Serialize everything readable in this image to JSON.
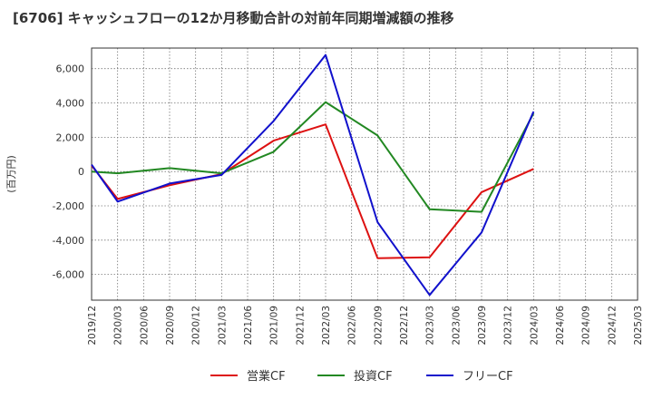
{
  "chart_data": {
    "type": "line",
    "title": "[6706]  キャッシュフローの12か月移動合計の対前年同期増減額の推移",
    "ylabel": "(百万円)",
    "xlabel": "",
    "ylim": [
      -7500,
      7200
    ],
    "y_ticks": [
      -6000,
      -4000,
      -2000,
      0,
      2000,
      4000,
      6000
    ],
    "y_tick_labels": [
      "-6,000",
      "-4,000",
      "-2,000",
      "0",
      "2,000",
      "4,000",
      "6,000"
    ],
    "categories": [
      "2019/12",
      "2020/03",
      "2020/06",
      "2020/09",
      "2020/12",
      "2021/03",
      "2021/06",
      "2021/09",
      "2021/12",
      "2022/03",
      "2022/06",
      "2022/09",
      "2022/12",
      "2023/03",
      "2023/06",
      "2023/09",
      "2023/12",
      "2024/03",
      "2024/06",
      "2024/09",
      "2024/12",
      "2025/03"
    ],
    "grid": true,
    "legend_position": "bottom",
    "series": [
      {
        "name": "営業CF",
        "color": "#dd1111",
        "values": [
          350,
          -1600,
          null,
          -800,
          null,
          -150,
          null,
          1800,
          null,
          2750,
          null,
          -5050,
          null,
          -5000,
          null,
          -1200,
          null,
          150,
          null,
          null,
          null,
          null
        ]
      },
      {
        "name": "投資CF",
        "color": "#228822",
        "values": [
          0,
          -100,
          null,
          200,
          null,
          -100,
          null,
          1150,
          null,
          4050,
          null,
          2100,
          null,
          -2200,
          null,
          -2350,
          null,
          3400,
          null,
          null,
          null,
          null
        ]
      },
      {
        "name": "フリーCF",
        "color": "#1111cc",
        "values": [
          400,
          -1750,
          null,
          -700,
          null,
          -200,
          null,
          2950,
          null,
          6800,
          null,
          -2950,
          null,
          -7200,
          null,
          -3550,
          null,
          3500,
          null,
          null,
          null,
          null
        ]
      }
    ]
  }
}
